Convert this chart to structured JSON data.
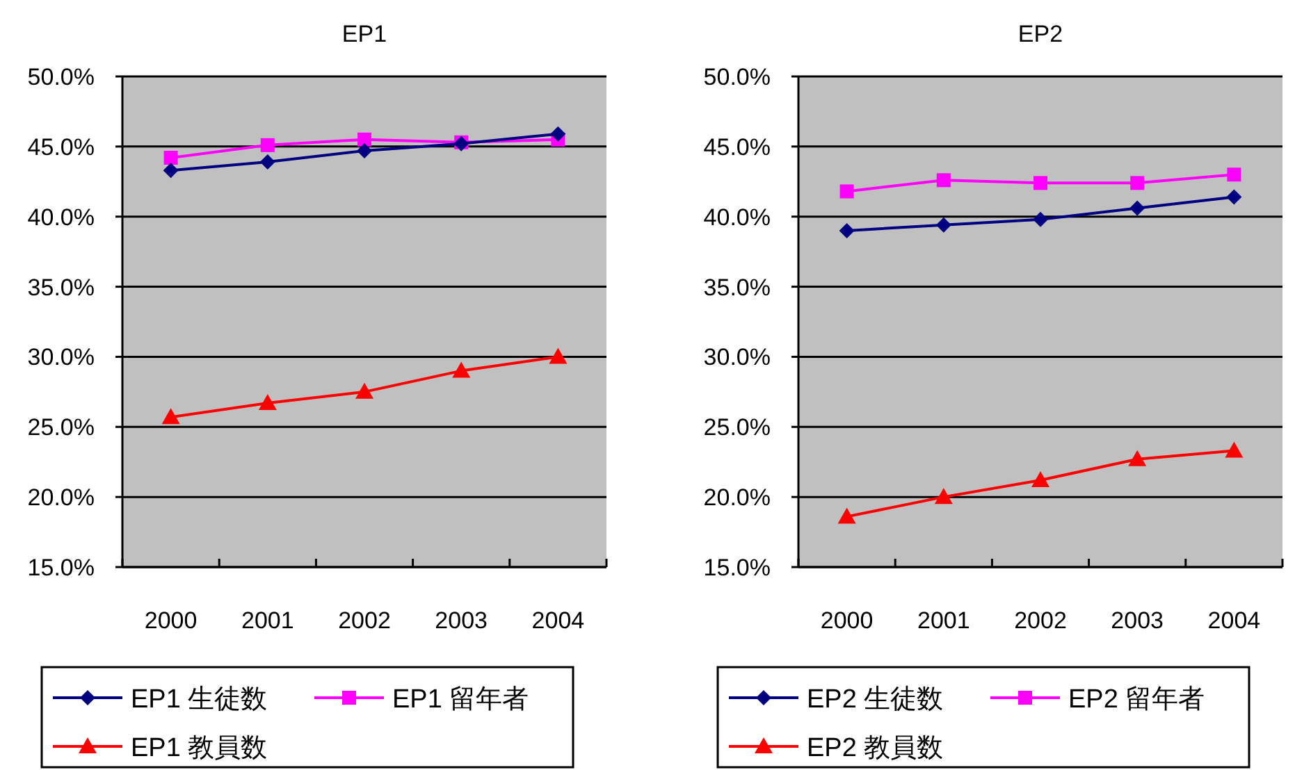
{
  "chart_data": [
    {
      "type": "line",
      "title": "EP1",
      "categories": [
        "2000",
        "2001",
        "2002",
        "2003",
        "2004"
      ],
      "ylim": [
        15,
        50
      ],
      "yticks": [
        {
          "value": 15,
          "label": "15.0%"
        },
        {
          "value": 20,
          "label": "20.0%"
        },
        {
          "value": 25,
          "label": "25.0%"
        },
        {
          "value": 30,
          "label": "30.0%"
        },
        {
          "value": 35,
          "label": "35.0%"
        },
        {
          "value": 40,
          "label": "40.0%"
        },
        {
          "value": 45,
          "label": "45.0%"
        },
        {
          "value": 50,
          "label": "50.0%"
        }
      ],
      "grid": "y",
      "legend": "bottom",
      "series": [
        {
          "name": "EP1 生徒数",
          "color": "#000080",
          "marker": "diamond",
          "values": [
            43.3,
            43.9,
            44.7,
            45.2,
            45.9
          ]
        },
        {
          "name": "EP1 留年者",
          "color": "#ff00ff",
          "marker": "square",
          "values": [
            44.2,
            45.1,
            45.5,
            45.3,
            45.5
          ]
        },
        {
          "name": "EP1 教員数",
          "color": "#ff0000",
          "marker": "triangle",
          "values": [
            25.7,
            26.7,
            27.5,
            29.0,
            30.0
          ]
        }
      ]
    },
    {
      "type": "line",
      "title": "EP2",
      "categories": [
        "2000",
        "2001",
        "2002",
        "2003",
        "2004"
      ],
      "ylim": [
        15,
        50
      ],
      "yticks": [
        {
          "value": 15,
          "label": "15.0%"
        },
        {
          "value": 20,
          "label": "20.0%"
        },
        {
          "value": 25,
          "label": "25.0%"
        },
        {
          "value": 30,
          "label": "30.0%"
        },
        {
          "value": 35,
          "label": "35.0%"
        },
        {
          "value": 40,
          "label": "40.0%"
        },
        {
          "value": 45,
          "label": "45.0%"
        },
        {
          "value": 50,
          "label": "50.0%"
        }
      ],
      "grid": "y",
      "legend": "bottom",
      "series": [
        {
          "name": "EP2 生徒数",
          "color": "#000080",
          "marker": "diamond",
          "values": [
            39.0,
            39.4,
            39.8,
            40.6,
            41.4
          ]
        },
        {
          "name": "EP2 留年者",
          "color": "#ff00ff",
          "marker": "square",
          "values": [
            41.8,
            42.6,
            42.4,
            42.4,
            43.0
          ]
        },
        {
          "name": "EP2 教員数",
          "color": "#ff0000",
          "marker": "triangle",
          "values": [
            18.6,
            20.0,
            21.2,
            22.7,
            23.3
          ]
        }
      ]
    }
  ]
}
